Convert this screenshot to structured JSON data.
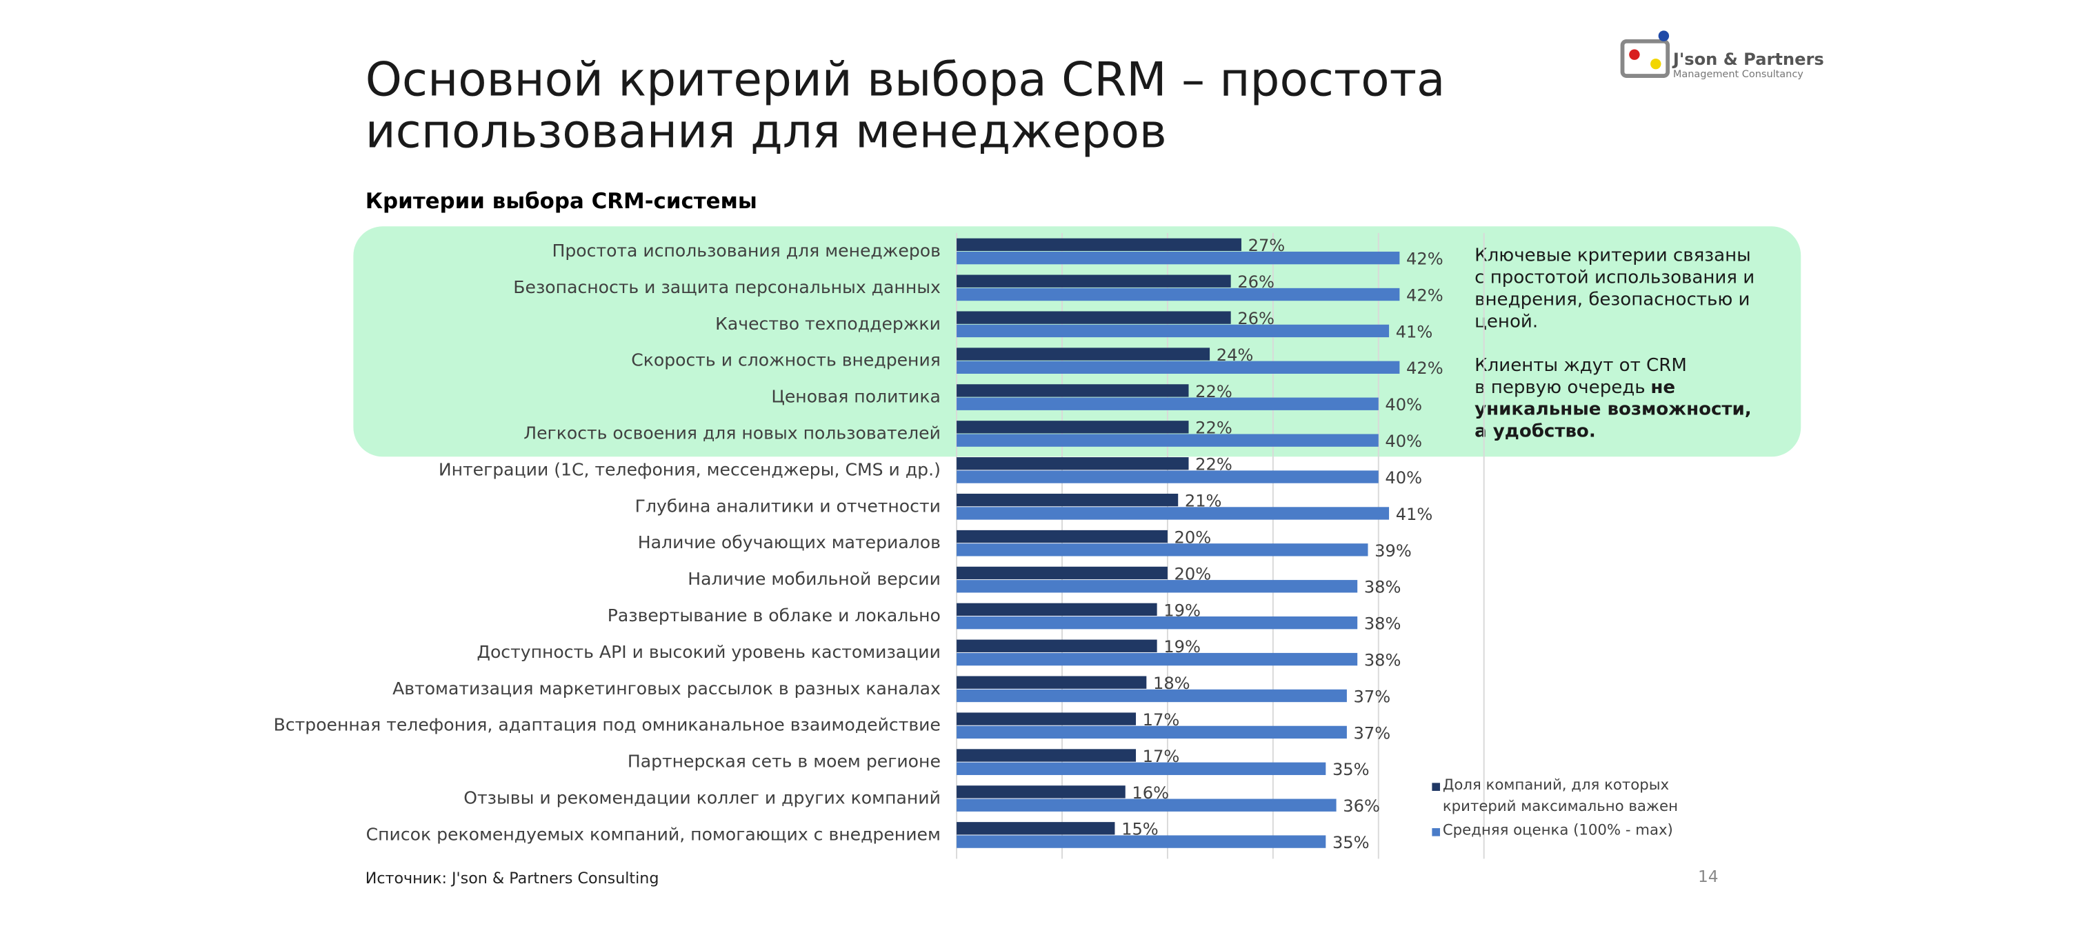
{
  "header": {
    "title": [
      "Основной критерий выбора CRM – простота",
      "использования для менеджеров"
    ],
    "logo": {
      "name": "J'son & Partners",
      "tagline": "Management Consultancy"
    }
  },
  "chart_data": {
    "type": "hbar",
    "subtitle": "Критерии выбора CRM-системы",
    "categories": [
      "Простота использования для менеджеров",
      "Безопасность и защита персональных данных",
      "Качество техподдержки",
      "Скорость и сложность внедрения",
      "Ценовая политика",
      "Легкость освоения для новых пользователей",
      "Интеграции (1С, телефония, мессенджеры, CMS и др.)",
      "Глубина аналитики и отчетности",
      "Наличие обучающих материалов",
      "Наличие мобильной версии",
      "Развертывание в облаке и локально",
      "Доступность API и высокий уровень кастомизации",
      "Автоматизация маркетинговых рассылок в разных каналах",
      "Встроенная телефония, адаптация под омниканальное взаимодействие",
      "Партнерская сеть в моем регионе",
      "Отзывы и рекомендации коллег и других компаний",
      "Список рекомендуемых компаний, помогающих с внедрением"
    ],
    "series": [
      {
        "name": "Доля компаний, для которых критерий максимально важен",
        "color": "#203864",
        "values": [
          27,
          26,
          26,
          24,
          22,
          22,
          22,
          21,
          20,
          20,
          19,
          19,
          18,
          17,
          17,
          16,
          15
        ],
        "value_labels": [
          "27%",
          "26%",
          "26%",
          "24%",
          "22%",
          "22%",
          "22%",
          "21%",
          "20%",
          "20%",
          "19%",
          "19%",
          "18%",
          "17%",
          "17%",
          "16%",
          "15%"
        ]
      },
      {
        "name": "Средняя оценка (100% - max)",
        "color": "#4a7cc8",
        "values": [
          42,
          42,
          41,
          42,
          40,
          40,
          40,
          41,
          39,
          38,
          38,
          38,
          37,
          37,
          35,
          36,
          35
        ],
        "value_labels": [
          "42%",
          "42%",
          "41%",
          "42%",
          "40%",
          "40%",
          "40%",
          "41%",
          "39%",
          "38%",
          "38%",
          "38%",
          "37%",
          "37%",
          "35%",
          "36%",
          "35%"
        ]
      }
    ],
    "xlim": [
      0,
      50
    ],
    "xticks": [
      0,
      10,
      20,
      30,
      40,
      50
    ],
    "grid": true,
    "annotation": [
      [
        {
          "text": "Ключевые критерии связаны",
          "bold": false
        }
      ],
      [
        {
          "text": "с простотой использования и",
          "bold": false
        }
      ],
      [
        {
          "text": "внедрения, безопасностью и",
          "bold": false
        }
      ],
      [
        {
          "text": "ценой.",
          "bold": false
        }
      ],
      [],
      [
        {
          "text": "Клиенты ждут от CRM",
          "bold": false
        }
      ],
      [
        {
          "text": "в первую очередь",
          "bold": false
        },
        {
          "text": "не",
          "bold": true
        }
      ],
      [
        {
          "text": "уникальные возможности,",
          "bold": true
        }
      ],
      [
        {
          "text": "а удобство.",
          "bold": true
        }
      ]
    ]
  },
  "footer": {
    "source": "Источник: J'son & Partners Consulting",
    "page": "14"
  }
}
